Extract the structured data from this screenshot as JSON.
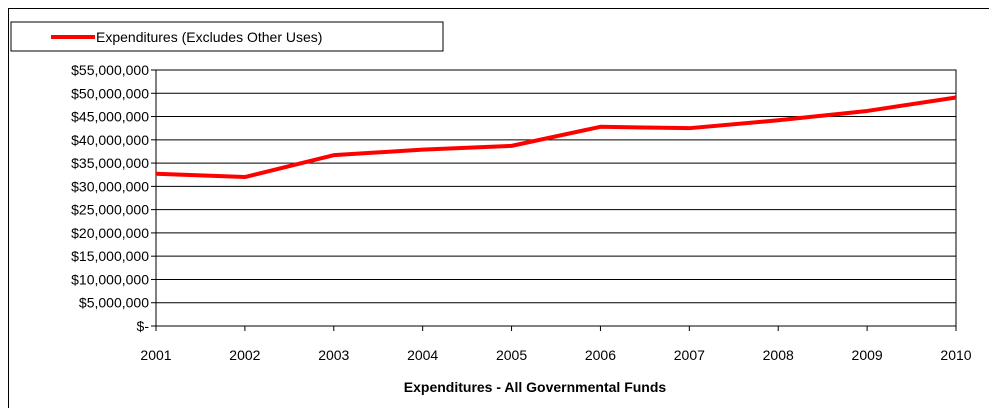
{
  "chart_data": {
    "type": "line",
    "title": "",
    "xlabel": "Expenditures - All Governmental Funds",
    "ylabel": "",
    "x": [
      "2001",
      "2002",
      "2003",
      "2004",
      "2005",
      "2006",
      "2007",
      "2008",
      "2009",
      "2010"
    ],
    "series": [
      {
        "name": "Expenditures (Excludes Other Uses)",
        "color": "#ff0000",
        "values": [
          32700000,
          32000000,
          36700000,
          37900000,
          38700000,
          42800000,
          42500000,
          44200000,
          46200000,
          49100000
        ]
      }
    ],
    "ylim": [
      0,
      55000000
    ],
    "y_ticks": [
      "$-",
      "$5,000,000",
      "$10,000,000",
      "$15,000,000",
      "$20,000,000",
      "$25,000,000",
      "$30,000,000",
      "$35,000,000",
      "$40,000,000",
      "$45,000,000",
      "$50,000,000",
      "$55,000,000"
    ],
    "grid": true,
    "legend_position": "top-left"
  }
}
